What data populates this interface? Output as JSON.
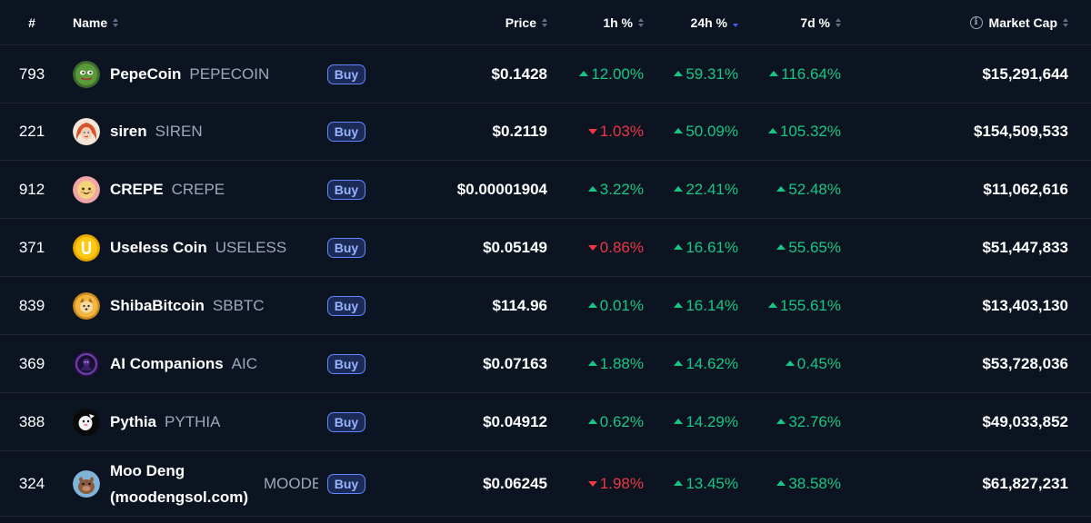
{
  "header": {
    "rank": "#",
    "name": "Name",
    "price": "Price",
    "h1": "1h %",
    "h24": "24h %",
    "d7": "7d %",
    "mcap": "Market Cap",
    "info_icon_glyph": "i"
  },
  "buy_label": "Buy",
  "colors": {
    "background": "#0d1421",
    "positive": "#16c784",
    "negative": "#ea3943",
    "accent": "#3861fb"
  },
  "rows": [
    {
      "rank": "793",
      "name": "PepeCoin",
      "symbol": "PEPECOIN",
      "price": "$0.1428",
      "h1": "12.00%",
      "h1_dir": "up",
      "h24": "59.31%",
      "h24_dir": "up",
      "d7": "116.64%",
      "d7_dir": "up",
      "mcap": "$15,291,644",
      "icon": "pepecoin-icon"
    },
    {
      "rank": "221",
      "name": "siren",
      "symbol": "SIREN",
      "price": "$0.2119",
      "h1": "1.03%",
      "h1_dir": "down",
      "h24": "50.09%",
      "h24_dir": "up",
      "d7": "105.32%",
      "d7_dir": "up",
      "mcap": "$154,509,533",
      "icon": "siren-icon"
    },
    {
      "rank": "912",
      "name": "CREPE",
      "symbol": "CREPE",
      "price": "$0.00001904",
      "h1": "3.22%",
      "h1_dir": "up",
      "h24": "22.41%",
      "h24_dir": "up",
      "d7": "52.48%",
      "d7_dir": "up",
      "mcap": "$11,062,616",
      "icon": "crepe-icon"
    },
    {
      "rank": "371",
      "name": "Useless Coin",
      "symbol": "USELESS",
      "price": "$0.05149",
      "h1": "0.86%",
      "h1_dir": "down",
      "h24": "16.61%",
      "h24_dir": "up",
      "d7": "55.65%",
      "d7_dir": "up",
      "mcap": "$51,447,833",
      "icon": "useless-coin-icon"
    },
    {
      "rank": "839",
      "name": "ShibaBitcoin",
      "symbol": "SBBTC",
      "price": "$114.96",
      "h1": "0.01%",
      "h1_dir": "up",
      "h24": "16.14%",
      "h24_dir": "up",
      "d7": "155.61%",
      "d7_dir": "up",
      "mcap": "$13,403,130",
      "icon": "shibabitcoin-icon"
    },
    {
      "rank": "369",
      "name": "AI Companions",
      "symbol": "AIC",
      "price": "$0.07163",
      "h1": "1.88%",
      "h1_dir": "up",
      "h24": "14.62%",
      "h24_dir": "up",
      "d7": "0.45%",
      "d7_dir": "up",
      "mcap": "$53,728,036",
      "icon": "ai-companions-icon"
    },
    {
      "rank": "388",
      "name": "Pythia",
      "symbol": "PYTHIA",
      "price": "$0.04912",
      "h1": "0.62%",
      "h1_dir": "up",
      "h24": "14.29%",
      "h24_dir": "up",
      "d7": "32.76%",
      "d7_dir": "up",
      "mcap": "$49,033,852",
      "icon": "pythia-icon"
    },
    {
      "rank": "324",
      "name_line1": "Moo Deng",
      "name_line2": "(moodengsol.com)",
      "symbol": "MOODENG",
      "price": "$0.06245",
      "h1": "1.98%",
      "h1_dir": "down",
      "h24": "13.45%",
      "h24_dir": "up",
      "d7": "38.58%",
      "d7_dir": "up",
      "mcap": "$61,827,231",
      "icon": "moo-deng-icon"
    }
  ]
}
